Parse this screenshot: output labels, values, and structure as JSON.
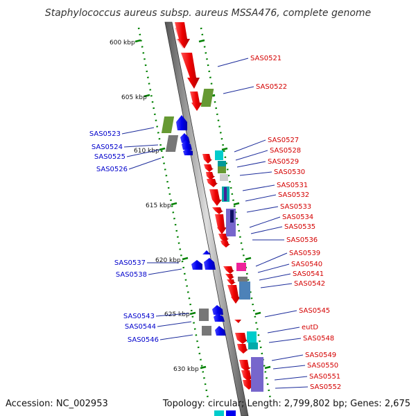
{
  "title": "Staphylococcus aureus subsp. aureus MSSA476, complete genome",
  "footer": {
    "accession": "Accession: NC_002953",
    "topology": "Topology: circular; Length: 2,799,802 bp; Genes: 2,675"
  },
  "colors": {
    "forward_strand": "#ee0000",
    "reverse_strand": "#0000ee",
    "red_label": "#d40000",
    "blue_label": "#0000cc",
    "tick": "#008000",
    "cog_green": "#669933",
    "cog_gray": "#777777",
    "cog_cyan": "#00cccc",
    "cog_pink": "#ee2299",
    "cog_purple": "#7766cc",
    "cog_steel": "#4d82b8"
  },
  "tick_labels": [
    "600 kbp",
    "605 kbp",
    "610 kbp",
    "615 kbp",
    "620 kbp",
    "625 kbp",
    "630 kbp"
  ],
  "genes_right": [
    "SAS0521",
    "SAS0522",
    "SAS0527",
    "SAS0528",
    "SAS0529",
    "SAS0530",
    "SAS0531",
    "SAS0532",
    "SAS0533",
    "SAS0534",
    "SAS0535",
    "SAS0536",
    "SAS0539",
    "SAS0540",
    "SAS0541",
    "SAS0542",
    "SAS0545",
    "eutD",
    "SAS0548",
    "SAS0549",
    "SAS0550",
    "SAS0551",
    "SAS0552"
  ],
  "genes_left": [
    "SAS0523",
    "SAS0524",
    "SAS0525",
    "SAS0526",
    "SAS0537",
    "SAS0538",
    "SAS0543",
    "SAS0544",
    "SAS0546"
  ]
}
